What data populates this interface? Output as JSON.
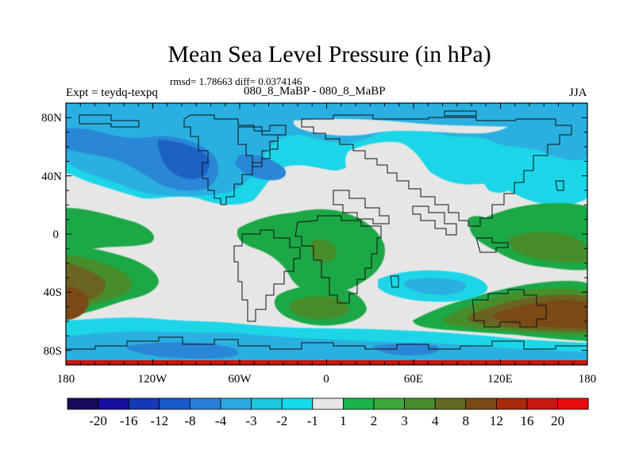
{
  "title": "Mean Sea Level Pressure (in hPa)",
  "stats_line": "rmsd= 1.78663 diff= 0.0374146",
  "left_label": "Expt = teydq-texpq",
  "center_label": "080_8_MaBP - 080_8_MaBP",
  "right_label": "JJA",
  "y_axis_ticks": [
    "80N",
    "40N",
    "0",
    "40S",
    "80S"
  ],
  "x_axis_ticks": [
    "180",
    "120W",
    "60W",
    "0",
    "60E",
    "120E",
    "180"
  ],
  "colorbar": {
    "labels": [
      "-20",
      "-16",
      "-12",
      "-8",
      "-4",
      "-3",
      "-2",
      "-1",
      "1",
      "2",
      "3",
      "4",
      "8",
      "12",
      "16",
      "20"
    ],
    "colors": [
      "#1a0a5e",
      "#160fa0",
      "#1438b8",
      "#1858c8",
      "#2a80d8",
      "#2ba8e2",
      "#19c8de",
      "#10dcec",
      "#e6e6e6",
      "#19b44c",
      "#3fa83c",
      "#4a8c2c",
      "#646a22",
      "#7a4a14",
      "#a82a08",
      "#c81810",
      "#e80c0c"
    ]
  },
  "map_colors": {
    "neutral": "#e6e6e6",
    "light_blue": "#1cd6e8",
    "mid_blue": "#2ab0e0",
    "blue": "#2a86d6",
    "dark_blue": "#1c62c4",
    "green": "#1aa846",
    "olive_green": "#468d2c",
    "olive": "#6a6420",
    "brown": "#7a4a14",
    "red_strip": "#c81810"
  }
}
